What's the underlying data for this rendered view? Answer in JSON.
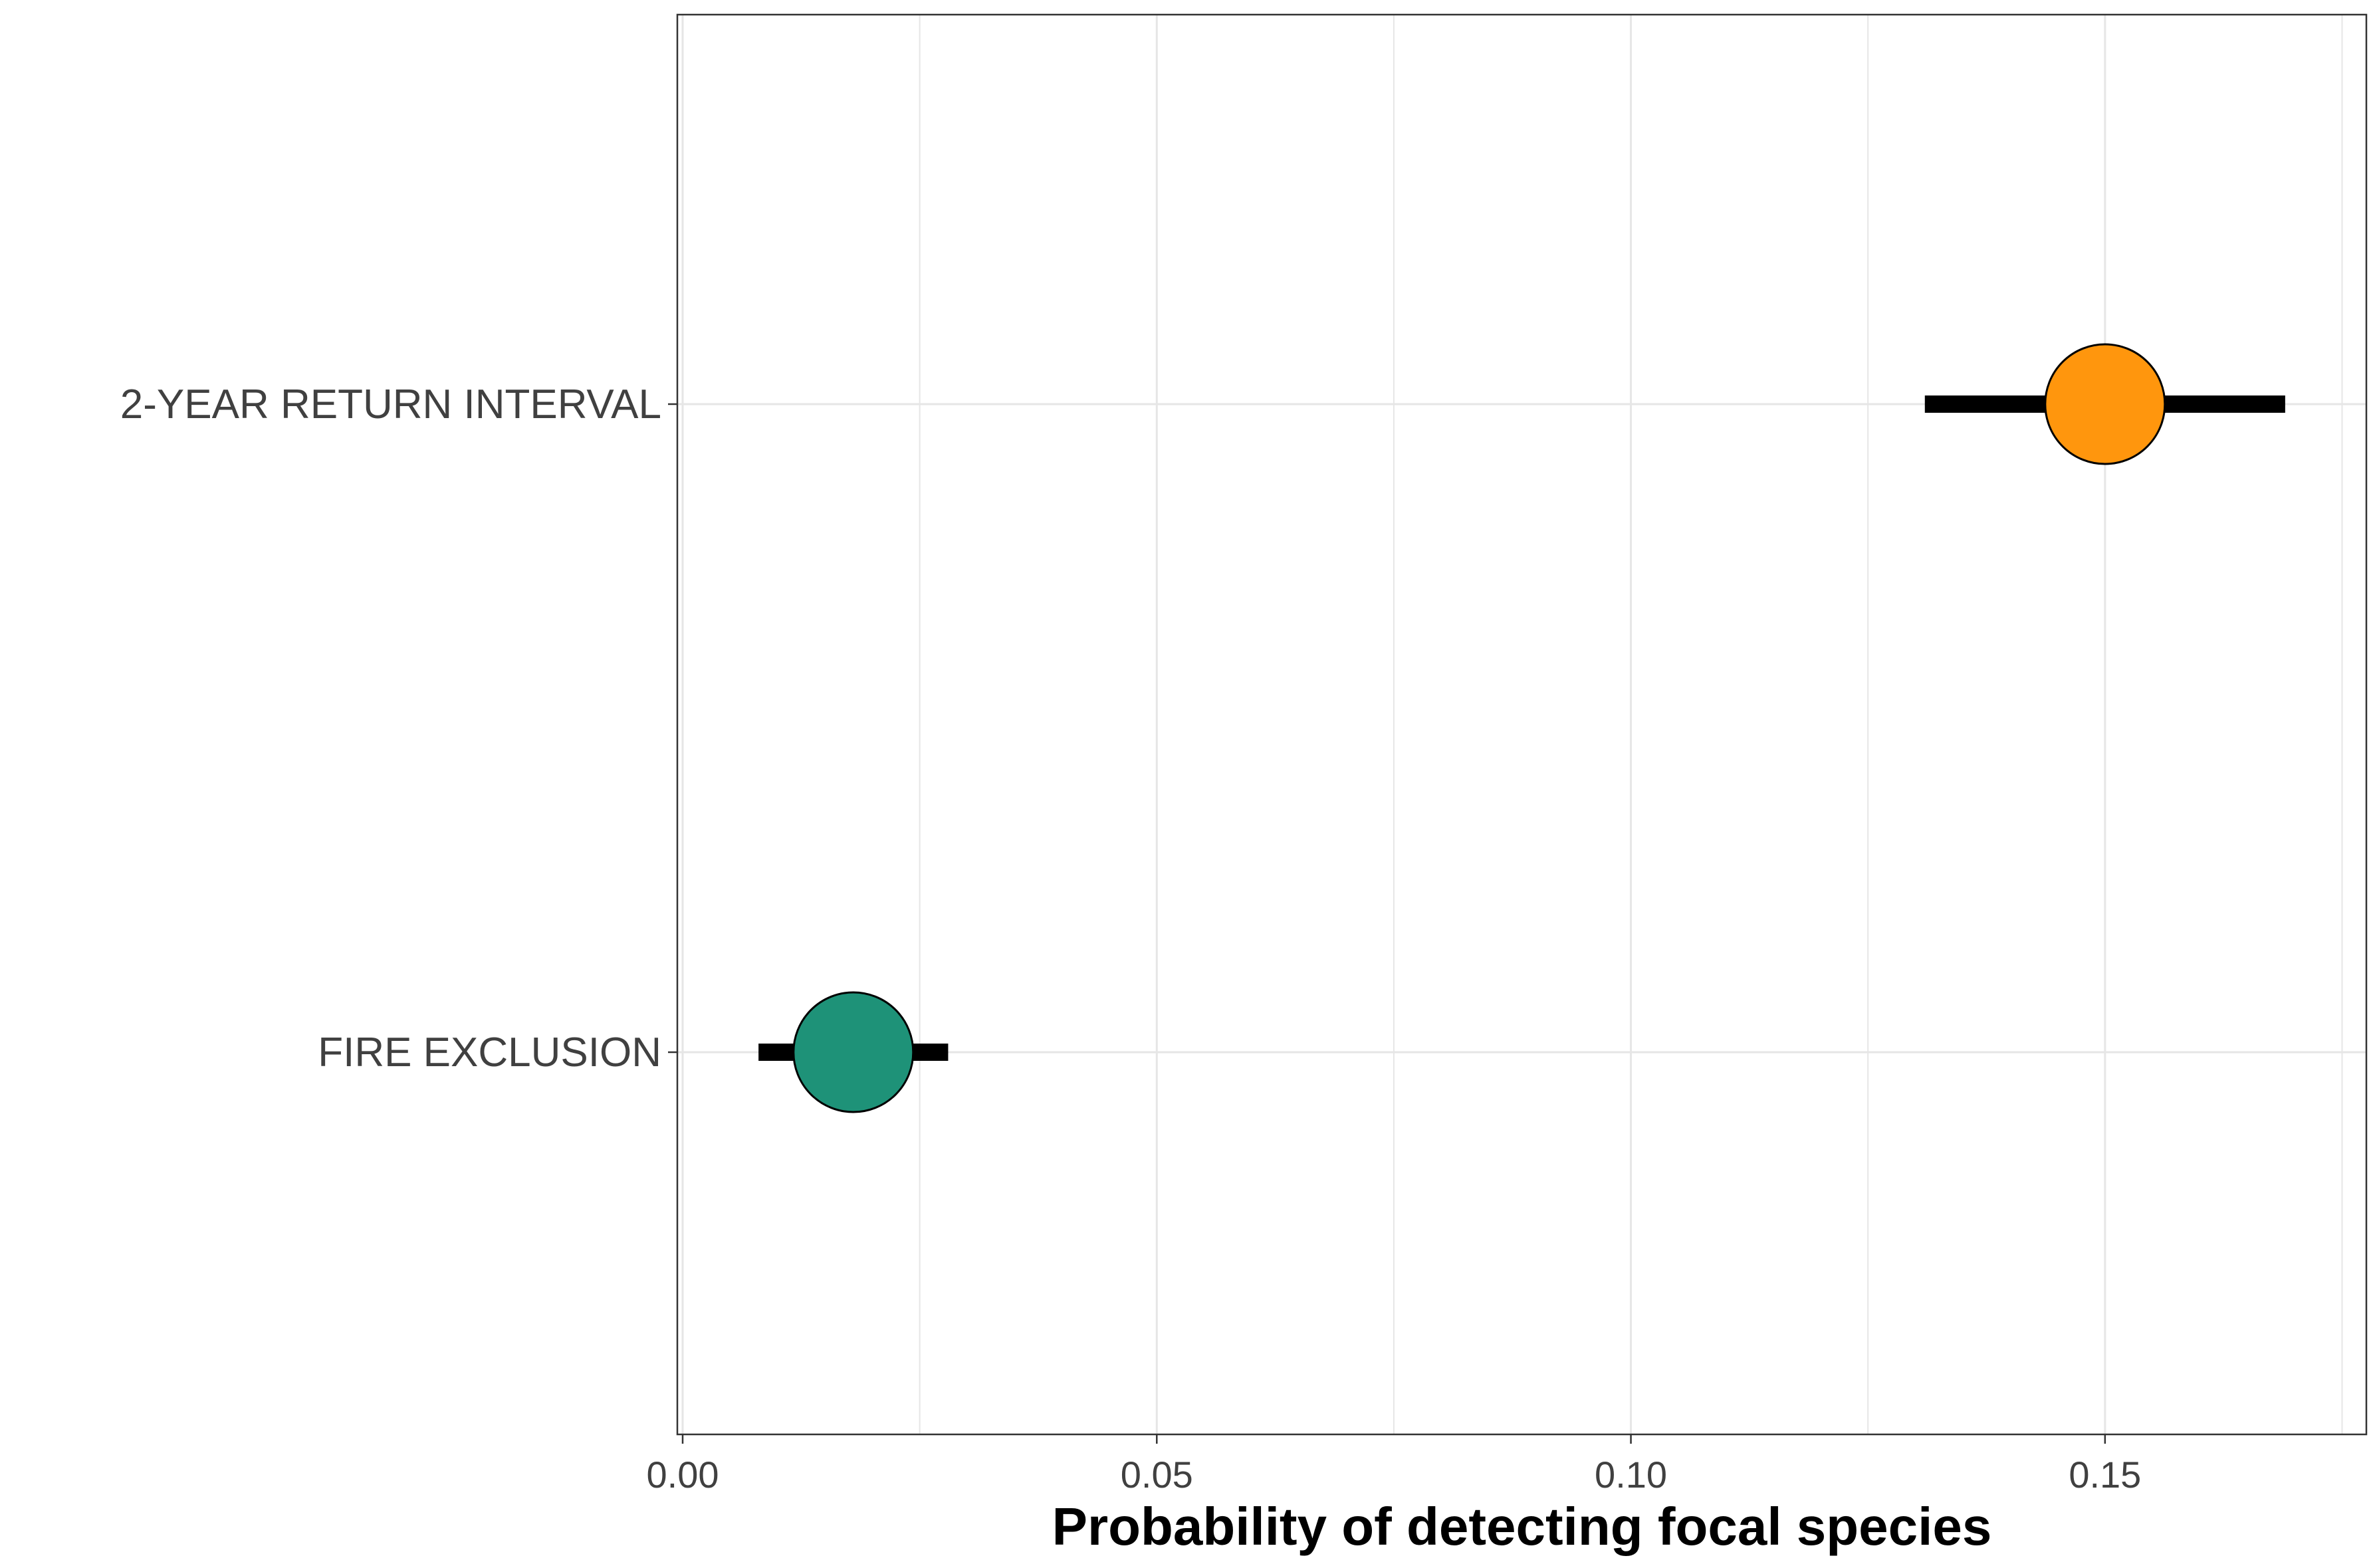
{
  "chart_data": {
    "type": "dot-errorbar",
    "orientation": "horizontal",
    "title": "",
    "xlabel": "Probability of detecting focal species",
    "ylabel": "",
    "xlim": [
      0.0,
      0.177
    ],
    "x_ticks": [
      0.0,
      0.05,
      0.1,
      0.15
    ],
    "x_tick_labels": [
      "0.00",
      "0.05",
      "0.10",
      "0.15"
    ],
    "categories": [
      "2-YEAR RETURN INTERVAL",
      "FIRE EXCLUSION"
    ],
    "series": [
      {
        "points": [
          {
            "category": "2-YEAR RETURN INTERVAL",
            "value": 0.15,
            "lower": 0.131,
            "upper": 0.169,
            "color": "#FF960D"
          },
          {
            "category": "FIRE EXCLUSION",
            "value": 0.018,
            "lower": 0.008,
            "upper": 0.028,
            "color": "#1E9278"
          }
        ]
      }
    ],
    "grid": true,
    "legend": "none",
    "colors": {
      "grid": "#e6e6e6",
      "axis": "#333333",
      "errorbar": "#000000",
      "point_outline": "#000000"
    }
  }
}
